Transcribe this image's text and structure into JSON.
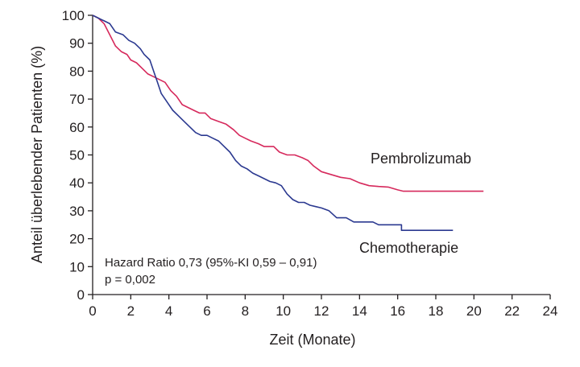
{
  "chart_data": {
    "type": "line",
    "title": "",
    "xlabel": "Zeit (Monate)",
    "ylabel": "Anteil überlebender Patienten (%)",
    "xlim": [
      0,
      24
    ],
    "ylim": [
      0,
      100
    ],
    "x_ticks": [
      0,
      2,
      4,
      6,
      8,
      10,
      12,
      14,
      16,
      18,
      20,
      22,
      24
    ],
    "y_ticks": [
      0,
      10,
      20,
      30,
      40,
      50,
      60,
      70,
      80,
      90,
      100
    ],
    "grid": false,
    "legend": "none",
    "series": [
      {
        "name": "Pembrolizumab",
        "color": "#d6295c",
        "points": [
          [
            0,
            100
          ],
          [
            0.3,
            99
          ],
          [
            0.6,
            97
          ],
          [
            0.9,
            93
          ],
          [
            1.2,
            89
          ],
          [
            1.5,
            87
          ],
          [
            1.8,
            86
          ],
          [
            2.0,
            84
          ],
          [
            2.3,
            83
          ],
          [
            2.6,
            81
          ],
          [
            2.9,
            79
          ],
          [
            3.2,
            78
          ],
          [
            3.5,
            77
          ],
          [
            3.8,
            76
          ],
          [
            4.1,
            73
          ],
          [
            4.4,
            71
          ],
          [
            4.7,
            68
          ],
          [
            5.0,
            67
          ],
          [
            5.3,
            66
          ],
          [
            5.6,
            65
          ],
          [
            5.9,
            65
          ],
          [
            6.2,
            63
          ],
          [
            6.6,
            62
          ],
          [
            7.0,
            61
          ],
          [
            7.4,
            59
          ],
          [
            7.7,
            57
          ],
          [
            8.0,
            56
          ],
          [
            8.3,
            55
          ],
          [
            8.7,
            54
          ],
          [
            9.0,
            53
          ],
          [
            9.5,
            53
          ],
          [
            9.8,
            51
          ],
          [
            10.2,
            50
          ],
          [
            10.6,
            50
          ],
          [
            11.0,
            49
          ],
          [
            11.3,
            48
          ],
          [
            11.6,
            46
          ],
          [
            12.0,
            44
          ],
          [
            12.5,
            43
          ],
          [
            13.0,
            42
          ],
          [
            13.5,
            41.5
          ],
          [
            14.0,
            40
          ],
          [
            14.5,
            39
          ],
          [
            15.0,
            38.7
          ],
          [
            15.5,
            38.5
          ],
          [
            16.0,
            37.5
          ],
          [
            16.3,
            37
          ],
          [
            20.5,
            37
          ]
        ]
      },
      {
        "name": "Chemotherapie",
        "color": "#2b3990",
        "points": [
          [
            0,
            100
          ],
          [
            0.3,
            99
          ],
          [
            0.6,
            98
          ],
          [
            0.9,
            97
          ],
          [
            1.2,
            94
          ],
          [
            1.6,
            93
          ],
          [
            1.9,
            91
          ],
          [
            2.2,
            90
          ],
          [
            2.5,
            88
          ],
          [
            2.7,
            86
          ],
          [
            3.0,
            84
          ],
          [
            3.2,
            80
          ],
          [
            3.4,
            76
          ],
          [
            3.6,
            72
          ],
          [
            3.9,
            69
          ],
          [
            4.2,
            66
          ],
          [
            4.5,
            64
          ],
          [
            4.8,
            62
          ],
          [
            5.1,
            60
          ],
          [
            5.4,
            58
          ],
          [
            5.7,
            57
          ],
          [
            6.0,
            57
          ],
          [
            6.3,
            56
          ],
          [
            6.6,
            55
          ],
          [
            6.9,
            53
          ],
          [
            7.2,
            51
          ],
          [
            7.5,
            48
          ],
          [
            7.8,
            46
          ],
          [
            8.1,
            45
          ],
          [
            8.4,
            43.5
          ],
          [
            8.7,
            42.5
          ],
          [
            9.0,
            41.5
          ],
          [
            9.3,
            40.5
          ],
          [
            9.6,
            40
          ],
          [
            9.9,
            39
          ],
          [
            10.2,
            36
          ],
          [
            10.5,
            34
          ],
          [
            10.8,
            33
          ],
          [
            11.1,
            33
          ],
          [
            11.4,
            32
          ],
          [
            11.7,
            31.5
          ],
          [
            12.0,
            31
          ],
          [
            12.4,
            30
          ],
          [
            12.8,
            27.5
          ],
          [
            13.3,
            27.5
          ],
          [
            13.7,
            26
          ],
          [
            14.2,
            26
          ],
          [
            14.7,
            26
          ],
          [
            15.0,
            25
          ],
          [
            15.5,
            25
          ],
          [
            16.2,
            25
          ],
          [
            16.2,
            23
          ],
          [
            18.9,
            23
          ]
        ]
      }
    ],
    "annotations": {
      "hazard_ratio": "Hazard Ratio 0,73 (95%-KI 0,59 – 0,91)",
      "p_value": "p = 0,002"
    }
  }
}
